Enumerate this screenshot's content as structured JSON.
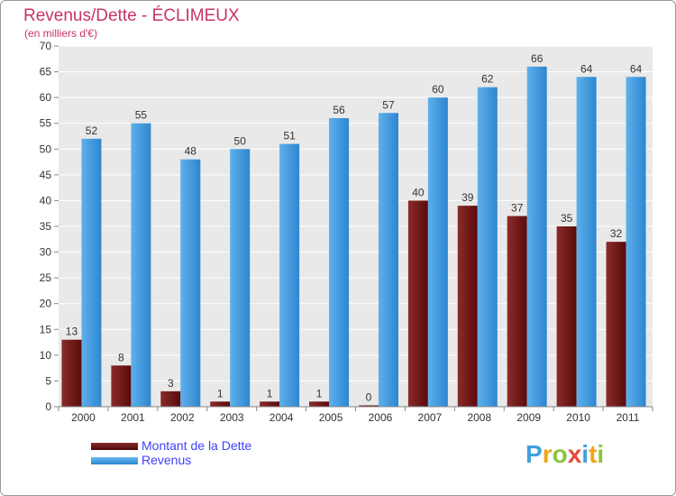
{
  "chart_data": {
    "type": "bar",
    "title": "Revenus/Dette - ÉCLIMEUX",
    "subtitle": "(en milliers d'€)",
    "categories": [
      "2000",
      "2001",
      "2002",
      "2003",
      "2004",
      "2005",
      "2006",
      "2007",
      "2008",
      "2009",
      "2010",
      "2011"
    ],
    "series": [
      {
        "name": "Montant de la Dette",
        "color": "#6e1414",
        "values": [
          13,
          8,
          3,
          1,
          1,
          1,
          0,
          40,
          39,
          37,
          35,
          32
        ]
      },
      {
        "name": "Revenus",
        "color": "#3d9be3",
        "values": [
          52,
          55,
          48,
          50,
          51,
          56,
          57,
          60,
          62,
          66,
          64,
          64
        ]
      }
    ],
    "ylim": [
      0,
      70
    ],
    "yticks": [
      0,
      5,
      10,
      15,
      20,
      25,
      30,
      35,
      40,
      45,
      50,
      55,
      60,
      65,
      70
    ],
    "grid": true,
    "legend_position": "bottom-left"
  },
  "branding": {
    "logo_letters": [
      "P",
      "r",
      "o",
      "x",
      "i",
      "t",
      "i"
    ],
    "logo_colors": [
      "#3fa1dc",
      "#f2a51a",
      "#8ac43f",
      "#e8473c",
      "#3fa1dc",
      "#f2a51a",
      "#8ac43f"
    ]
  }
}
